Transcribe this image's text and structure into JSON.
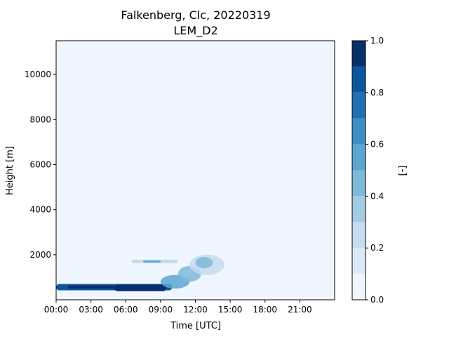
{
  "chart_data": {
    "type": "heatmap",
    "title_line1": "Falkenberg, Clc, 20220319",
    "title_line2": "LEM_D2",
    "xlabel": "Time [UTC]",
    "ylabel": "Height [m]",
    "colorbar_label": "[-]",
    "xlim_hours": [
      0,
      24
    ],
    "ylim": [
      0,
      11500
    ],
    "x_ticks": [
      {
        "hour": 0,
        "label": "00:00"
      },
      {
        "hour": 3,
        "label": "03:00"
      },
      {
        "hour": 6,
        "label": "06:00"
      },
      {
        "hour": 9,
        "label": "09:00"
      },
      {
        "hour": 12,
        "label": "12:00"
      },
      {
        "hour": 15,
        "label": "15:00"
      },
      {
        "hour": 18,
        "label": "18:00"
      },
      {
        "hour": 21,
        "label": "21:00"
      }
    ],
    "y_ticks": [
      {
        "value": 2000,
        "label": "2000"
      },
      {
        "value": 4000,
        "label": "4000"
      },
      {
        "value": 6000,
        "label": "6000"
      },
      {
        "value": 8000,
        "label": "8000"
      },
      {
        "value": 10000,
        "label": "10000"
      }
    ],
    "colorbar_ticks": [
      {
        "value": 0.0,
        "label": "0.0"
      },
      {
        "value": 0.2,
        "label": "0.2"
      },
      {
        "value": 0.4,
        "label": "0.4"
      },
      {
        "value": 0.6,
        "label": "0.6"
      },
      {
        "value": 0.8,
        "label": "0.8"
      },
      {
        "value": 1.0,
        "label": "1.0"
      }
    ],
    "levels": [
      0.0,
      0.1,
      0.2,
      0.3,
      0.4,
      0.5,
      0.6,
      0.7,
      0.8,
      0.9,
      1.0
    ],
    "colors": [
      "#eff6fd",
      "#dbe9f6",
      "#c6dbef",
      "#a3cce3",
      "#7fb9da",
      "#5da5d1",
      "#3d8dc4",
      "#2070b4",
      "#0c56a0",
      "#08306b"
    ],
    "background_color": "#eff6fd",
    "cloud_features": [
      {
        "t0": 0.0,
        "t1": 10.0,
        "h0": 420,
        "h1": 700,
        "level": 8,
        "shape": "band"
      },
      {
        "t0": 5.0,
        "t1": 9.5,
        "h0": 380,
        "h1": 680,
        "level": 9,
        "shape": "band"
      },
      {
        "t0": 1.0,
        "t1": 5.0,
        "h0": 500,
        "h1": 640,
        "level": 9,
        "shape": "band"
      },
      {
        "t0": 9.0,
        "t1": 11.5,
        "h0": 500,
        "h1": 1100,
        "level": 5,
        "shape": "blob"
      },
      {
        "t0": 10.5,
        "t1": 12.5,
        "h0": 800,
        "h1": 1500,
        "level": 4,
        "shape": "blob"
      },
      {
        "t0": 11.5,
        "t1": 14.5,
        "h0": 1100,
        "h1": 2000,
        "level": 2,
        "shape": "blob"
      },
      {
        "t0": 12.0,
        "t1": 13.5,
        "h0": 1400,
        "h1": 1900,
        "level": 4,
        "shape": "blob"
      },
      {
        "t0": 6.5,
        "t1": 10.5,
        "h0": 1620,
        "h1": 1780,
        "level": 2,
        "shape": "band"
      },
      {
        "t0": 7.5,
        "t1": 9.0,
        "h0": 1660,
        "h1": 1740,
        "level": 5,
        "shape": "band"
      }
    ]
  }
}
